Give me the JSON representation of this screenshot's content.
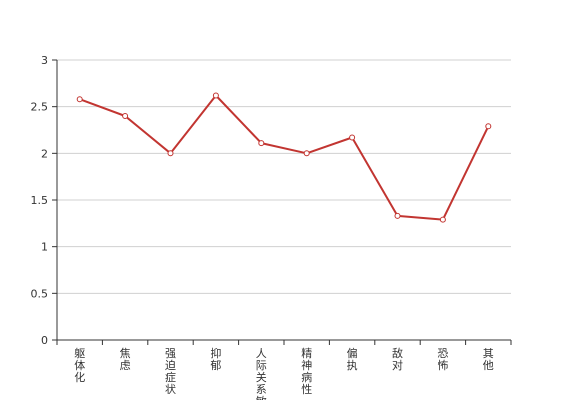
{
  "chart_data": {
    "type": "line",
    "categories": [
      "躯体化",
      "焦虑",
      "强迫症状",
      "抑郁",
      "人际关系敏感",
      "精神病性",
      "偏执",
      "敌对",
      "恐怖",
      "其他"
    ],
    "series": [
      {
        "values": [
          2.58,
          2.4,
          2.0,
          2.62,
          2.11,
          2.0,
          2.17,
          1.33,
          1.29,
          2.29
        ]
      }
    ],
    "ylim": [
      0,
      3
    ],
    "yticks": [
      0,
      0.5,
      1,
      1.5,
      2,
      2.5,
      3
    ],
    "grid": true,
    "line_color": "#c23531"
  }
}
